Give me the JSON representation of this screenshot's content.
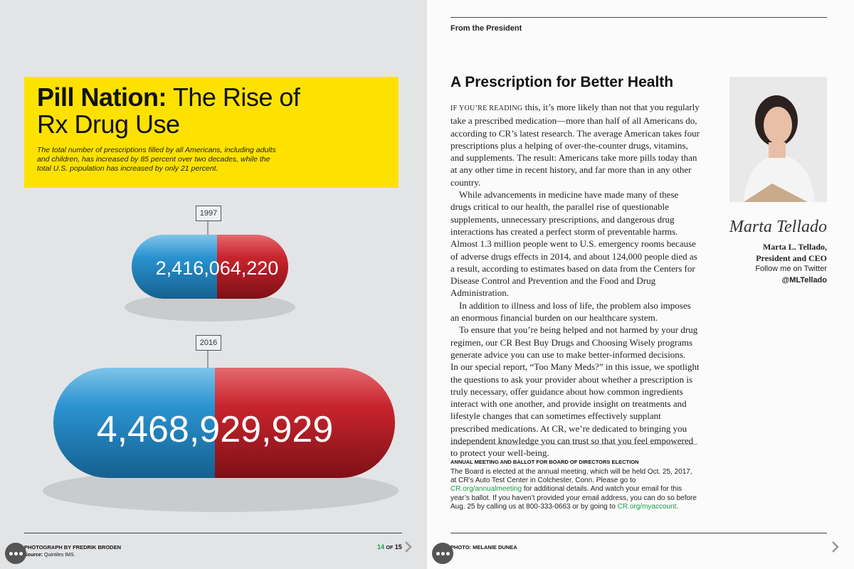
{
  "left": {
    "headline_bold": "Pill Nation:",
    "headline_light": "The Rise of Rx Drug Use",
    "dek": "The total number of prescriptions filled by all Americans, including adults and children, has increased by 85 percent over two decades, while the total U.S. population has increased by only 21 percent.",
    "pills": [
      {
        "year": "1997",
        "count": "2,416,064,220"
      },
      {
        "year": "2016",
        "count": "4,468,929,929"
      }
    ],
    "photo_credit": "PHOTOGRAPH BY FREDRIK BRODEN",
    "source_label": "Source:",
    "source": "Quintiles IMS.",
    "page": "14",
    "page_of": "OF",
    "page_total": "15"
  },
  "right": {
    "section": "From the President",
    "title": "A Prescription for Better Health",
    "lead": "IF YOU’RE READING",
    "paragraphs": [
      " this, it’s more likely than not that you regularly take a prescribed medication—more than half of all Americans do, according to CR’s latest research. The average American takes four prescriptions plus a helping of over-the-counter drugs, vitamins, and supplements. The result: Americans take more pills today than at any other time in recent history, and far more than in any other country.",
      "While advancements in medicine have made many of these drugs critical to our health, the parallel rise of questionable supplements, unnecessary prescriptions, and dangerous drug interactions has created a perfect storm of preventable harms. Almost 1.3 million people went to U.S. emergency rooms because of adverse drugs effects in 2014, and about 124,000 people died as a result, according to estimates based on data from the Centers for Disease Control and Prevention and the Food and Drug Administration.",
      "In addition to illness and loss of life, the problem also imposes an enormous financial burden on our healthcare system.",
      "To ensure that you’re being helped and not harmed by your drug regimen, our CR Best Buy Drugs and Choosing Wisely programs generate advice you can use to make better-informed decisions.",
      "In our special report, “Too Many Meds?” in this issue, we spotlight the questions to ask your provider about whether a prescription is truly necessary, offer guidance about how common ingredients interact with one another, and provide insight on treatments and lifestyle changes that can sometimes effectively supplant prescribed medications. At CR, we’re dedicated to bringing you independent knowledge you can trust so that you feel empowered to protect your well-being."
    ],
    "signature": "Marta Tellado",
    "name": "Marta L. Tellado,",
    "role": "President and CEO",
    "follow": "Follow me on Twitter",
    "handle": "@MLTellado",
    "box": {
      "heading": "ANNUAL MEETING AND BALLOT FOR BOARD OF DIRECTORS ELECTION",
      "text1": "The Board is elected at the annual meeting, which will be held Oct. 25, 2017, at CR’s Auto Test Center in Colchester, Conn. Please go to ",
      "link1": "CR.org/annualmeeting",
      "text2": " for additional details. And watch your email for this year’s ballot. If you haven’t provided your email address, you can do so before Aug. 25 by calling us at 800-333-0663 or by going to ",
      "link2": "CR.org/myaccount",
      "text3": "."
    },
    "photo_credit": "PHOTO: MELANIE DUNEA"
  }
}
